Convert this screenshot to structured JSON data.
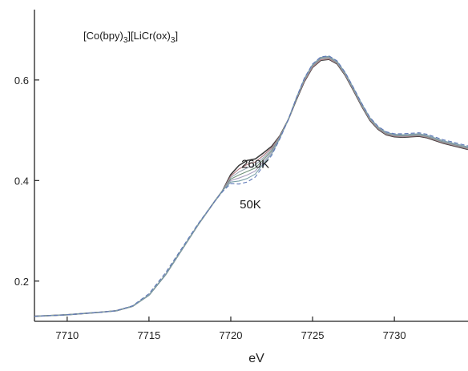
{
  "chart_data": {
    "type": "line",
    "title_parts": {
      "p1": "[Co(bpy)",
      "s1": "3",
      "p2": "][LiCr(ox)",
      "s2": "3",
      "p3": "]"
    },
    "xlabel": "eV",
    "ylabel": "",
    "xlim": [
      7708,
      7734.5
    ],
    "ylim": [
      0.12,
      0.74
    ],
    "x_ticks": [
      7710,
      7715,
      7720,
      7725,
      7730
    ],
    "y_ticks": [
      0.2,
      0.4,
      0.6
    ],
    "annotations": {
      "high": {
        "text": "260K",
        "x": 7721.5,
        "y": 0.425
      },
      "low": {
        "text": "50K",
        "x": 7721.2,
        "y": 0.345
      }
    },
    "x": [
      7708,
      7710,
      7712,
      7713,
      7714,
      7715,
      7716,
      7717,
      7718,
      7719,
      7719.5,
      7720,
      7720.5,
      7721,
      7721.5,
      7722,
      7722.5,
      7723,
      7723.5,
      7724,
      7724.5,
      7725,
      7725.5,
      7726,
      7726.5,
      7727,
      7727.5,
      7728,
      7728.5,
      7729,
      7729.5,
      7730,
      7730.5,
      7731,
      7731.5,
      7732,
      7733,
      7734.5
    ],
    "series": [
      {
        "values": [
          0.13,
          0.133,
          0.138,
          0.141,
          0.15,
          0.172,
          0.212,
          0.262,
          0.312,
          0.358,
          0.38,
          0.412,
          0.43,
          0.44,
          0.443,
          0.455,
          0.468,
          0.489,
          0.52,
          0.56,
          0.597,
          0.625,
          0.639,
          0.641,
          0.632,
          0.609,
          0.579,
          0.548,
          0.52,
          0.502,
          0.491,
          0.487,
          0.486,
          0.487,
          0.488,
          0.485,
          0.474,
          0.462
        ],
        "color": "#3d3d3d",
        "dash": ""
      },
      {
        "values": [
          0.13,
          0.133,
          0.138,
          0.141,
          0.15,
          0.172,
          0.212,
          0.262,
          0.312,
          0.358,
          0.38,
          0.409,
          0.423,
          0.432,
          0.437,
          0.45,
          0.465,
          0.488,
          0.52,
          0.561,
          0.598,
          0.626,
          0.64,
          0.642,
          0.633,
          0.61,
          0.58,
          0.549,
          0.521,
          0.503,
          0.492,
          0.488,
          0.487,
          0.488,
          0.489,
          0.486,
          0.475,
          0.463
        ],
        "color": "#b07a80",
        "dash": ""
      },
      {
        "values": [
          0.13,
          0.133,
          0.138,
          0.141,
          0.15,
          0.172,
          0.212,
          0.262,
          0.312,
          0.358,
          0.38,
          0.406,
          0.417,
          0.425,
          0.431,
          0.446,
          0.462,
          0.487,
          0.52,
          0.562,
          0.6,
          0.628,
          0.642,
          0.644,
          0.634,
          0.611,
          0.581,
          0.55,
          0.522,
          0.504,
          0.493,
          0.489,
          0.488,
          0.489,
          0.49,
          0.487,
          0.476,
          0.464
        ],
        "color": "#9aa6b4",
        "dash": ""
      },
      {
        "values": [
          0.13,
          0.133,
          0.138,
          0.141,
          0.15,
          0.172,
          0.212,
          0.262,
          0.312,
          0.358,
          0.38,
          0.403,
          0.411,
          0.418,
          0.425,
          0.442,
          0.459,
          0.486,
          0.52,
          0.562,
          0.601,
          0.629,
          0.643,
          0.645,
          0.635,
          0.612,
          0.582,
          0.551,
          0.523,
          0.505,
          0.494,
          0.49,
          0.489,
          0.49,
          0.491,
          0.488,
          0.477,
          0.465
        ],
        "color": "#6f8f78",
        "dash": ""
      },
      {
        "values": [
          0.13,
          0.133,
          0.138,
          0.141,
          0.15,
          0.172,
          0.212,
          0.262,
          0.312,
          0.358,
          0.38,
          0.4,
          0.405,
          0.411,
          0.419,
          0.438,
          0.456,
          0.485,
          0.52,
          0.563,
          0.602,
          0.63,
          0.644,
          0.646,
          0.636,
          0.613,
          0.583,
          0.552,
          0.524,
          0.506,
          0.495,
          0.491,
          0.49,
          0.491,
          0.492,
          0.489,
          0.478,
          0.466
        ],
        "color": "#a8a0c0",
        "dash": ""
      },
      {
        "values": [
          0.13,
          0.133,
          0.138,
          0.141,
          0.15,
          0.172,
          0.212,
          0.262,
          0.312,
          0.358,
          0.38,
          0.397,
          0.399,
          0.404,
          0.413,
          0.434,
          0.453,
          0.484,
          0.52,
          0.564,
          0.603,
          0.631,
          0.645,
          0.647,
          0.637,
          0.614,
          0.584,
          0.553,
          0.525,
          0.507,
          0.496,
          0.492,
          0.491,
          0.492,
          0.493,
          0.49,
          0.479,
          0.467
        ],
        "color": "#7aa0a8",
        "dash": ""
      },
      {
        "values": [
          0.13,
          0.133,
          0.138,
          0.141,
          0.151,
          0.175,
          0.216,
          0.265,
          0.314,
          0.358,
          0.378,
          0.394,
          0.393,
          0.397,
          0.407,
          0.43,
          0.45,
          0.483,
          0.52,
          0.564,
          0.604,
          0.632,
          0.646,
          0.648,
          0.638,
          0.615,
          0.585,
          0.554,
          0.526,
          0.508,
          0.497,
          0.493,
          0.493,
          0.494,
          0.495,
          0.492,
          0.481,
          0.469
        ],
        "color": "#5f78b8",
        "dash": "5,3"
      }
    ]
  }
}
